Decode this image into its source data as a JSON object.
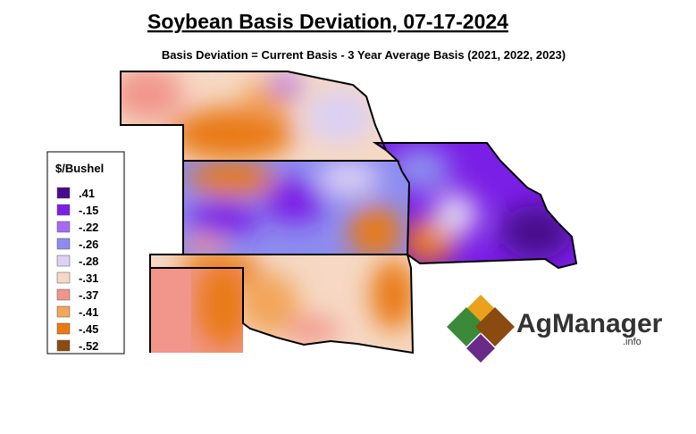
{
  "title": "Soybean Basis Deviation, 07-17-2024",
  "subtitle": "Basis Deviation = Current Basis - 3 Year Average Basis (2021, 2022, 2023)",
  "legend": {
    "title": "$/Bushel",
    "items": [
      {
        "label": ".41",
        "color": "#4a0a8c"
      },
      {
        "label": "-.15",
        "color": "#7a1fe6"
      },
      {
        "label": "-.22",
        "color": "#a66af2"
      },
      {
        "label": "-.26",
        "color": "#8c8cf0"
      },
      {
        "label": "-.28",
        "color": "#dcd0f4"
      },
      {
        "label": "-.31",
        "color": "#f6d8c4"
      },
      {
        "label": "-.37",
        "color": "#f2958a"
      },
      {
        "label": "-.41",
        "color": "#f2a65a"
      },
      {
        "label": "-.45",
        "color": "#e97a12"
      },
      {
        "label": "-.52",
        "color": "#8a4a10"
      }
    ]
  },
  "logo": {
    "name": "AgManager",
    "suffix": ".info"
  }
}
